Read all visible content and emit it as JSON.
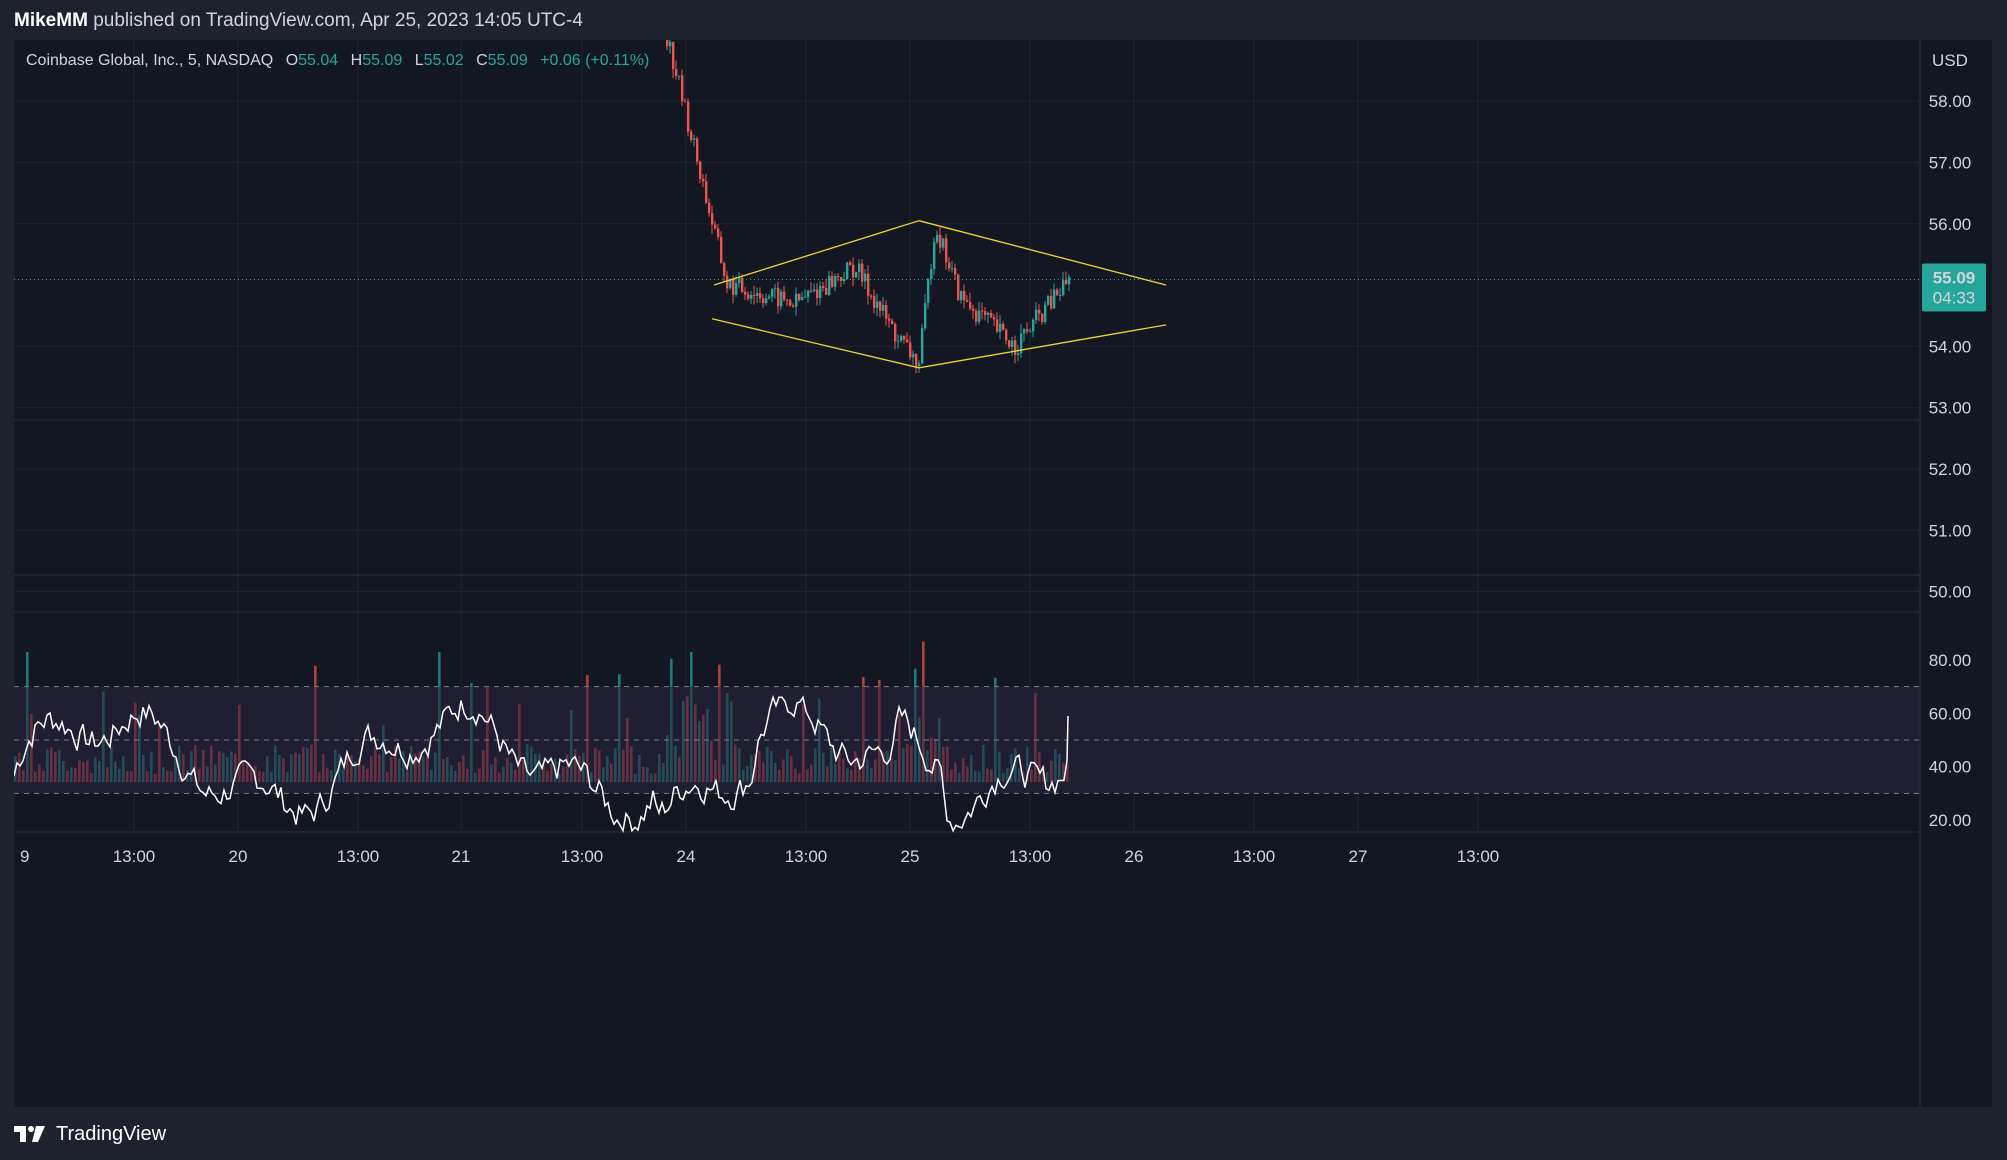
{
  "header": {
    "author": "MikeMM",
    "published_text": "published on TradingView.com, Apr 25, 2023 14:05 UTC-4"
  },
  "legend": {
    "symbol": "Coinbase Global, Inc., 5, NASDAQ",
    "open_label": "O",
    "open": "55.04",
    "high_label": "H",
    "high": "55.09",
    "low_label": "L",
    "low": "55.02",
    "close_label": "C",
    "close": "55.09",
    "change": "+0.06 (+0.11%)"
  },
  "price_axis": {
    "currency": "USD",
    "ticks": [
      "58.00",
      "57.00",
      "56.00",
      "54.00",
      "53.00",
      "52.00",
      "51.00",
      "50.00"
    ],
    "current_price": "55.09",
    "countdown": "04:33"
  },
  "rsi_axis": {
    "ticks": [
      "80.00",
      "60.00",
      "40.00",
      "20.00"
    ]
  },
  "time_axis": {
    "labels": [
      "9",
      "13:00",
      "20",
      "13:00",
      "21",
      "13:00",
      "24",
      "13:00",
      "25",
      "13:00",
      "26",
      "13:00",
      "27",
      "13:00"
    ]
  },
  "footer": {
    "brand": "TradingView",
    "logo_icon": "tradingview-logo-icon"
  },
  "colors": {
    "background": "#131722",
    "up": "#26a69a",
    "down": "#ef5350",
    "pattern": "#f0d43a",
    "rsi_line": "#ffffff",
    "rsi_band": "#2a2540",
    "price_label": "#26a69a"
  },
  "chart_data": {
    "type": "candlestick",
    "symbol": "Coinbase Global, Inc., 5, NASDAQ",
    "interval": "5",
    "x_ticks": [
      "9",
      "13:00",
      "20",
      "13:00",
      "21",
      "13:00",
      "24",
      "13:00",
      "25",
      "13:00",
      "26",
      "13:00",
      "27",
      "13:00"
    ],
    "price": {
      "unit": "USD",
      "y_ticks": [
        58,
        57,
        56,
        54,
        53,
        52,
        51,
        50
      ],
      "ylim": [
        49.8,
        59.2
      ],
      "last": 55.09,
      "ohlc_last": {
        "open": 55.04,
        "high": 55.09,
        "low": 55.02,
        "close": 55.09
      },
      "change": "+0.06 (+0.11%)",
      "visible_path": [
        {
          "x": "24 early",
          "price": 59.2
        },
        {
          "x": "24 open",
          "price": 58.2
        },
        {
          "x": "24",
          "price": 56.5
        },
        {
          "x": "24",
          "price": 55.0
        },
        {
          "x": "24 13:00",
          "price": 54.7
        },
        {
          "x": "24 afternoon",
          "price": 55.3
        },
        {
          "x": "24 late",
          "price": 54.2
        },
        {
          "x": "25 open",
          "price": 53.7
        },
        {
          "x": "25",
          "price": 56.0
        },
        {
          "x": "25",
          "price": 54.8
        },
        {
          "x": "25 13:00",
          "price": 54.0
        },
        {
          "x": "25 last",
          "price": 55.09
        }
      ]
    },
    "pattern": {
      "type": "diamond",
      "color": "#f0d43a",
      "points": [
        {
          "x": "24 open",
          "price": 55.0
        },
        {
          "x": "25 open",
          "price": 56.05
        },
        {
          "x": "25 open",
          "price": 53.65
        },
        {
          "x": "25 late",
          "price": 55.5
        },
        {
          "x": "26 projection",
          "price": 55.0
        },
        {
          "x": "26 projection",
          "price": 54.35
        }
      ]
    },
    "volume": {
      "note": "histogram of per-bar volume, spikes near 24 open and 25 open"
    },
    "rsi": {
      "y_ticks": [
        80,
        60,
        40,
        20
      ],
      "bands": [
        70,
        50,
        30
      ],
      "last": 59
    }
  }
}
